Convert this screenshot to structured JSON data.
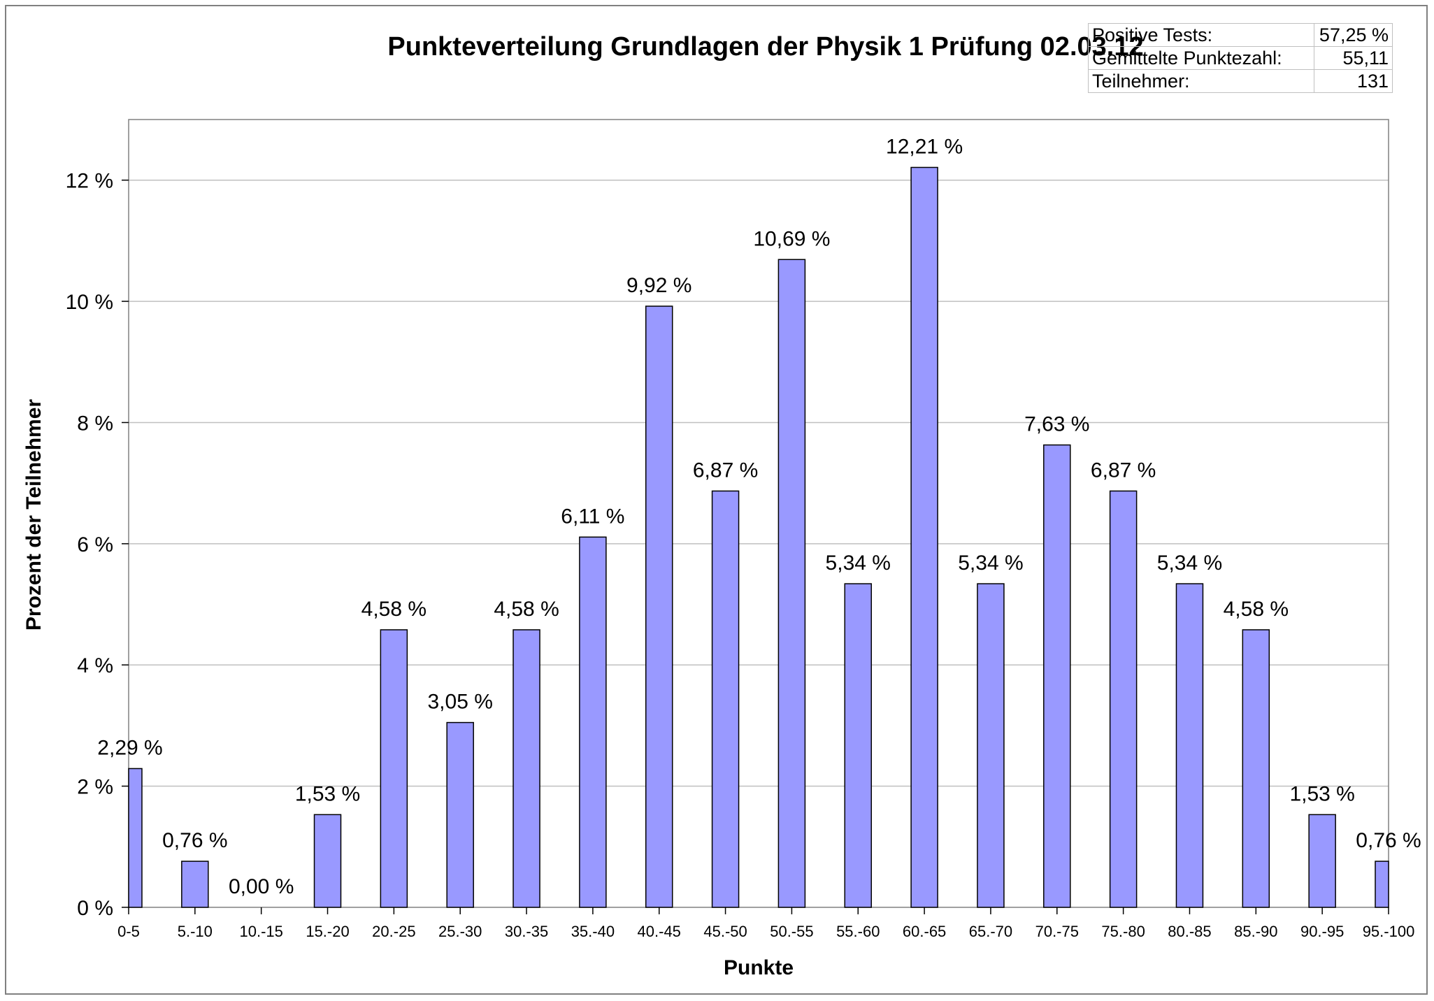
{
  "stats": [
    {
      "label": "Positive Tests:",
      "value": "57,25 %"
    },
    {
      "label": "Gemittelte Punktezahl:",
      "value": "55,11"
    },
    {
      "label": "Teilnehmer:",
      "value": "131"
    }
  ],
  "chart_data": {
    "type": "bar",
    "title": "Punkteverteilung Grundlagen der Physik 1 Prüfung 02.03.12",
    "xlabel": "Punkte",
    "ylabel": "Prozent der Teilnehmer",
    "categories": [
      "0-5",
      "5.-10",
      "10.-15",
      "15.-20",
      "20.-25",
      "25.-30",
      "30.-35",
      "35.-40",
      "40.-45",
      "45.-50",
      "50.-55",
      "55.-60",
      "60.-65",
      "65.-70",
      "70.-75",
      "75.-80",
      "80.-85",
      "85.-90",
      "90.-95",
      "95.-100"
    ],
    "values": [
      2.29,
      0.76,
      0.0,
      1.53,
      4.58,
      3.05,
      4.58,
      6.11,
      9.92,
      6.87,
      10.69,
      5.34,
      12.21,
      5.34,
      7.63,
      6.87,
      5.34,
      4.58,
      1.53,
      0.76
    ],
    "value_labels": [
      "2,29 %",
      "0,76 %",
      "0,00 %",
      "1,53 %",
      "4,58 %",
      "3,05 %",
      "4,58 %",
      "6,11 %",
      "9,92 %",
      "6,87 %",
      "10,69 %",
      "5,34 %",
      "12,21 %",
      "5,34 %",
      "7,63 %",
      "6,87 %",
      "5,34 %",
      "4,58 %",
      "1,53 %",
      "0,76 %"
    ],
    "ylim": [
      0,
      13
    ],
    "yticks": [
      0,
      2,
      4,
      6,
      8,
      10,
      12
    ],
    "ytick_labels": [
      "0 %",
      "2 %",
      "4 %",
      "6 %",
      "8 %",
      "10 %",
      "12 %"
    ],
    "grid": true,
    "bar_color": "#9999ff"
  }
}
